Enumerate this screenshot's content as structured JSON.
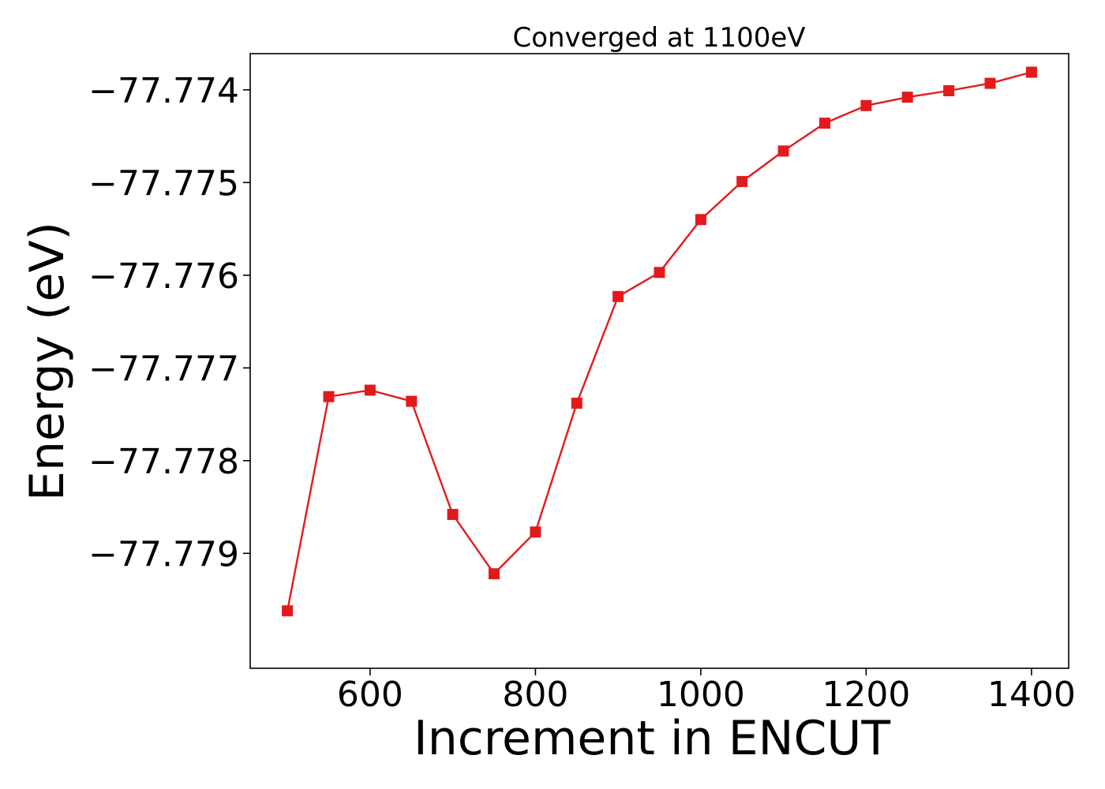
{
  "chart_data": {
    "type": "line",
    "title": "Converged at 1100eV",
    "xlabel": "Increment in ENCUT",
    "ylabel": "Energy (eV)",
    "x": [
      500,
      550,
      600,
      650,
      700,
      750,
      800,
      850,
      900,
      950,
      1000,
      1050,
      1100,
      1150,
      1200,
      1250,
      1300,
      1350,
      1400
    ],
    "series": [
      {
        "name": "",
        "color": "#e31a1c",
        "marker": "square",
        "values": [
          -77.77962,
          -77.77731,
          -77.77724,
          -77.77736,
          -77.77858,
          -77.77922,
          -77.77877,
          -77.77738,
          -77.77623,
          -77.77597,
          -77.7754,
          -77.77499,
          -77.77466,
          -77.77436,
          -77.77417,
          -77.77408,
          -77.77401,
          -77.77393,
          -77.77381
        ]
      }
    ],
    "x_ticks": [
      600,
      800,
      1000,
      1200,
      1400
    ],
    "x_tick_labels": [
      "600",
      "800",
      "1000",
      "1200",
      "1400"
    ],
    "y_ticks": [
      -77.779,
      -77.778,
      -77.777,
      -77.776,
      -77.775,
      -77.774
    ],
    "y_tick_labels": [
      "−77.779",
      "−77.778",
      "−77.777",
      "−77.776",
      "−77.775",
      "−77.774"
    ],
    "xlim": [
      455,
      1445
    ],
    "ylim": [
      -77.78024,
      -77.77361
    ],
    "grid": false,
    "legend": false
  }
}
